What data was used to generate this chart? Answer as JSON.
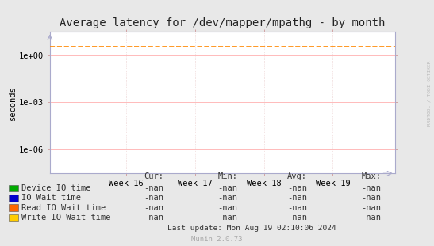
{
  "title": "Average latency for /dev/mapper/mpathg - by month",
  "ylabel": "seconds",
  "bg_color": "#e8e8e8",
  "plot_bg_color": "#ffffff",
  "grid_h_color": "#ffb0b0",
  "grid_v_color": "#e8c8c8",
  "xticklabels": [
    "Week 16",
    "Week 17",
    "Week 18",
    "Week 19"
  ],
  "xtick_positions": [
    0.22,
    0.42,
    0.62,
    0.82
  ],
  "ytick_labels": [
    "1e-06",
    "1e-03",
    "1e+00"
  ],
  "dashed_line_y": 3.5,
  "dashed_line_color": "#ff8800",
  "legend_items": [
    {
      "label": "Device IO time",
      "color": "#00aa00"
    },
    {
      "label": "IO Wait time",
      "color": "#0000cc"
    },
    {
      "label": "Read IO Wait time",
      "color": "#ff6600"
    },
    {
      "label": "Write IO Wait time",
      "color": "#ffcc00"
    }
  ],
  "legend_stats_header": [
    "Cur:",
    "Min:",
    "Avg:",
    "Max:"
  ],
  "legend_stats_values": [
    "-nan",
    "-nan",
    "-nan",
    "-nan"
  ],
  "footer_text": "Last update: Mon Aug 19 02:10:06 2024",
  "munin_text": "Munin 2.0.73",
  "watermark": "RRDTOOL / TOBI OETIKER",
  "title_fontsize": 10,
  "axis_fontsize": 7.5,
  "legend_fontsize": 7.5
}
